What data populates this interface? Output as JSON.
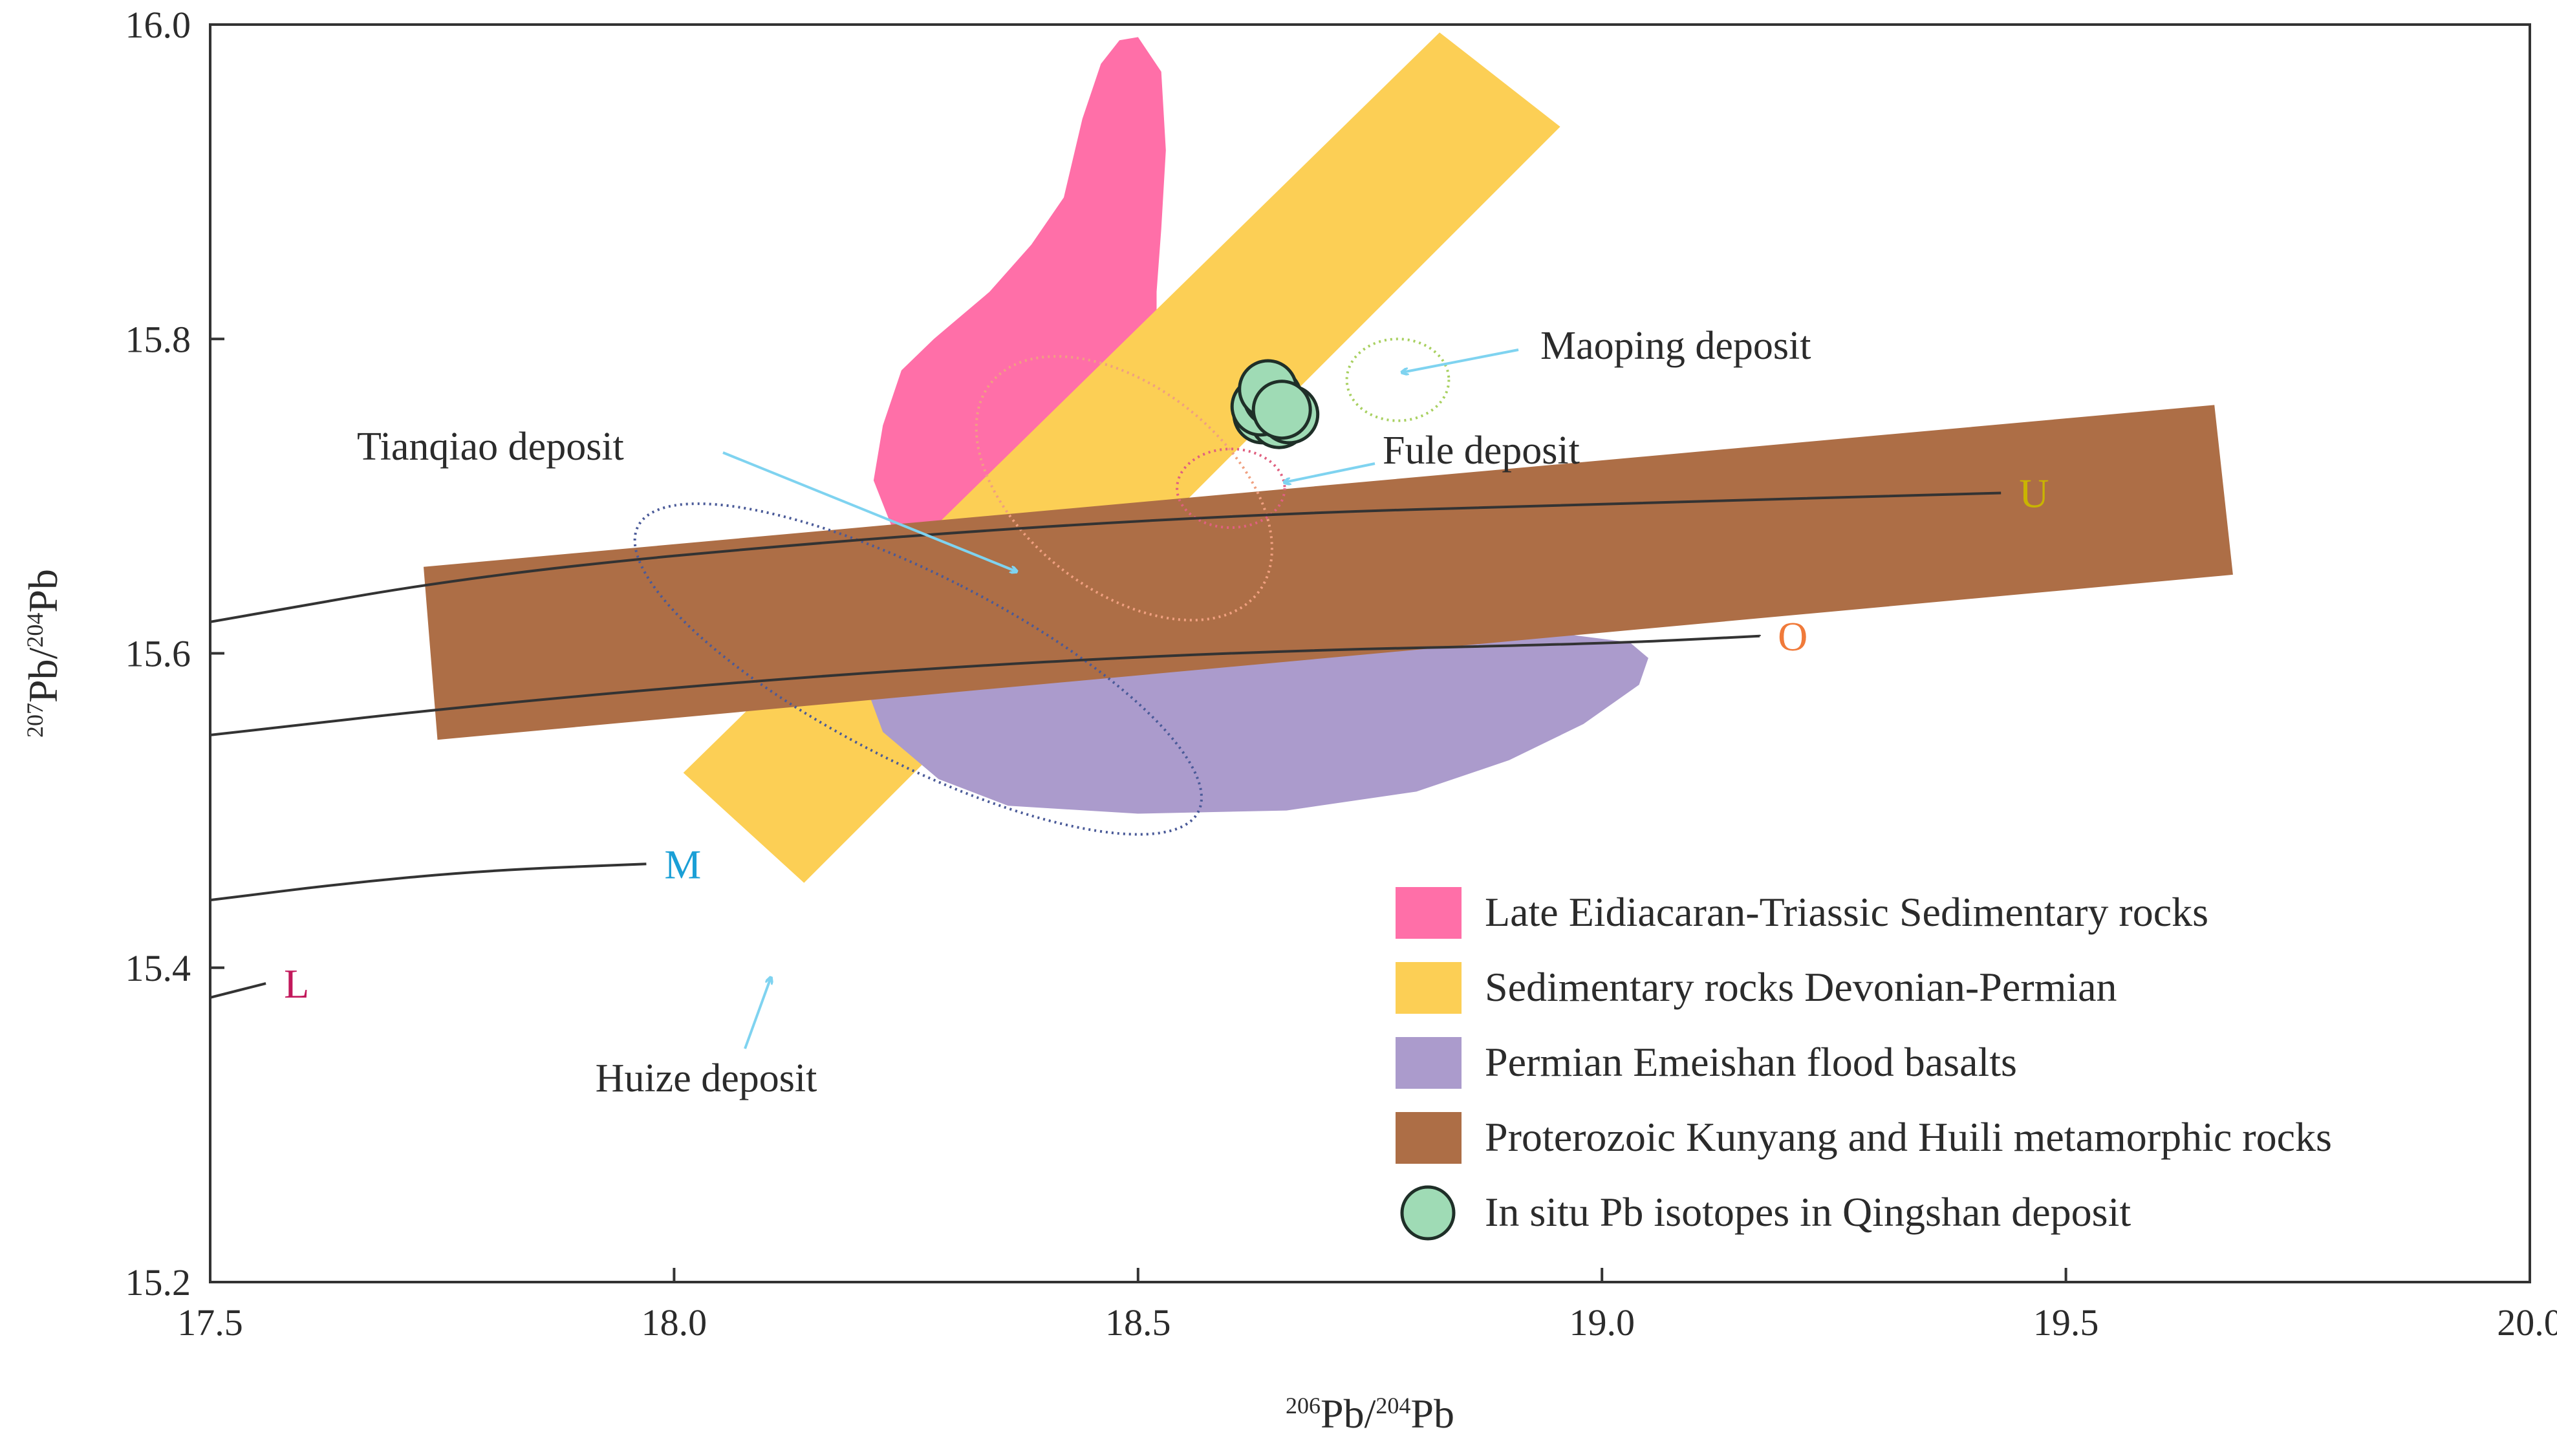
{
  "chart_data": {
    "type": "scatter",
    "xlim": [
      17.5,
      20.0
    ],
    "ylim": [
      15.2,
      16.0
    ],
    "x_ticks": [
      "17.5",
      "18.0",
      "18.5",
      "19.0",
      "19.5",
      "20.0"
    ],
    "y_ticks": [
      "15.2",
      "15.4",
      "15.6",
      "15.8",
      "16.0"
    ],
    "xlabel": {
      "sup1": "206",
      "base1": "Pb/",
      "sup2": "204",
      "base2": "Pb"
    },
    "ylabel": {
      "sup1": "207",
      "base1": "Pb/",
      "sup2": "204",
      "base2": "Pb"
    },
    "grid": false,
    "legend_placement": "bottom-right",
    "evolution_curves": [
      {
        "label": "U",
        "color": "#c9b400",
        "points": [
          [
            17.5,
            15.62
          ],
          [
            17.8,
            15.651
          ],
          [
            18.2,
            15.673
          ],
          [
            18.6,
            15.688
          ],
          [
            19.0,
            15.695
          ],
          [
            19.43,
            15.702
          ]
        ]
      },
      {
        "label": "O",
        "color": "#f07a3a",
        "points": [
          [
            17.5,
            15.548
          ],
          [
            17.8,
            15.568
          ],
          [
            18.2,
            15.588
          ],
          [
            18.6,
            15.601
          ],
          [
            19.0,
            15.606
          ],
          [
            19.17,
            15.611
          ]
        ]
      },
      {
        "label": "M",
        "color": "#1a9fd6",
        "points": [
          [
            17.5,
            15.443
          ],
          [
            17.65,
            15.454
          ],
          [
            17.8,
            15.462
          ],
          [
            17.97,
            15.466
          ]
        ]
      },
      {
        "label": "L",
        "color": "#c2185b",
        "points": [
          [
            17.5,
            15.381
          ],
          [
            17.56,
            15.39
          ]
        ]
      }
    ],
    "fields": [
      {
        "name": "Late Eidiacaran-Triassic Sedimentary rocks",
        "color": "#ff6fa8",
        "polygon": [
          [
            18.48,
            15.99
          ],
          [
            18.5,
            15.992
          ],
          [
            18.525,
            15.97
          ],
          [
            18.53,
            15.92
          ],
          [
            18.525,
            15.87
          ],
          [
            18.52,
            15.83
          ],
          [
            18.52,
            15.79
          ],
          [
            18.49,
            15.755
          ],
          [
            18.44,
            15.73
          ],
          [
            18.39,
            15.71
          ],
          [
            18.33,
            15.69
          ],
          [
            18.27,
            15.675
          ],
          [
            18.235,
            15.68
          ],
          [
            18.215,
            15.71
          ],
          [
            18.225,
            15.745
          ],
          [
            18.245,
            15.78
          ],
          [
            18.28,
            15.8
          ],
          [
            18.34,
            15.83
          ],
          [
            18.385,
            15.86
          ],
          [
            18.42,
            15.89
          ],
          [
            18.44,
            15.94
          ],
          [
            18.46,
            15.975
          ]
        ]
      },
      {
        "name": "Sedimentary rocks Devonian-Permian",
        "color": "#fccf55",
        "polygon": [
          [
            18.825,
            15.995
          ],
          [
            18.955,
            15.935
          ],
          [
            18.14,
            15.454
          ],
          [
            18.01,
            15.524
          ]
        ]
      },
      {
        "name": "Permian Emeishan flood basalts",
        "color": "#ab9bcc",
        "polygon": [
          [
            18.21,
            15.66
          ],
          [
            18.3,
            15.665
          ],
          [
            18.4,
            15.645
          ],
          [
            18.5,
            15.635
          ],
          [
            18.58,
            15.615
          ],
          [
            18.65,
            15.61
          ],
          [
            18.8,
            15.612
          ],
          [
            18.95,
            15.613
          ],
          [
            19.03,
            15.607
          ],
          [
            19.05,
            15.597
          ],
          [
            19.04,
            15.58
          ],
          [
            18.98,
            15.555
          ],
          [
            18.9,
            15.532
          ],
          [
            18.8,
            15.512
          ],
          [
            18.66,
            15.5
          ],
          [
            18.5,
            15.498
          ],
          [
            18.36,
            15.503
          ],
          [
            18.285,
            15.52
          ],
          [
            18.225,
            15.55
          ],
          [
            18.2,
            15.59
          ],
          [
            18.195,
            15.62
          ]
        ]
      },
      {
        "name": "Proterozoic Kunyang and Huili metamorphic rocks",
        "color": "#ad6e46",
        "polygon": [
          [
            17.73,
            15.655
          ],
          [
            19.66,
            15.758
          ],
          [
            19.68,
            15.65
          ],
          [
            17.745,
            15.545
          ]
        ]
      }
    ],
    "deposit_outlines": [
      {
        "label": "Huize deposit",
        "color": "#4a5a98",
        "cx": 18.263,
        "cy": 15.59,
        "rx": 0.101,
        "ry": 0.2
      },
      {
        "label": "Tianqiao deposit",
        "color": "#f0a080",
        "cx": 18.485,
        "cy": 15.705,
        "rx": 0.11,
        "ry": 0.108
      },
      {
        "label": "Maoping deposit",
        "color": "#a8d060",
        "cx": 18.78,
        "cy": 15.774,
        "rx": 0.055,
        "ry": 0.026
      },
      {
        "label": "Fule deposit",
        "color": "#e06080",
        "cx": 18.6,
        "cy": 15.705,
        "rx": 0.058,
        "ry": 0.025
      }
    ],
    "annotations": [
      {
        "text": "Maoping deposit"
      },
      {
        "text": "Tianqiao deposit"
      },
      {
        "text": "Fule deposit"
      },
      {
        "text": "Huize deposit"
      }
    ],
    "points": {
      "name": "In situ Pb isotopes in Qingshan deposit",
      "color": "#9fdbb5",
      "values": [
        [
          18.634,
          15.752
        ],
        [
          18.652,
          15.749
        ],
        [
          18.663,
          15.752
        ],
        [
          18.647,
          15.758
        ],
        [
          18.632,
          15.757
        ],
        [
          18.645,
          15.763
        ],
        [
          18.64,
          15.768
        ],
        [
          18.655,
          15.755
        ]
      ]
    },
    "legend": [
      {
        "label": "Late Eidiacaran-Triassic Sedimentary rocks",
        "color": "#ff6fa8",
        "marker": "square"
      },
      {
        "label": "Sedimentary rocks Devonian-Permian",
        "color": "#fccf55",
        "marker": "square"
      },
      {
        "label": "Permian Emeishan flood basalts",
        "color": "#ab9bcc",
        "marker": "square"
      },
      {
        "label": "Proterozoic Kunyang and Huili metamorphic rocks",
        "color": "#ad6e46",
        "marker": "square"
      },
      {
        "label": "In situ Pb isotopes in Qingshan deposit",
        "color": "#9fdbb5",
        "marker": "circle"
      }
    ]
  }
}
